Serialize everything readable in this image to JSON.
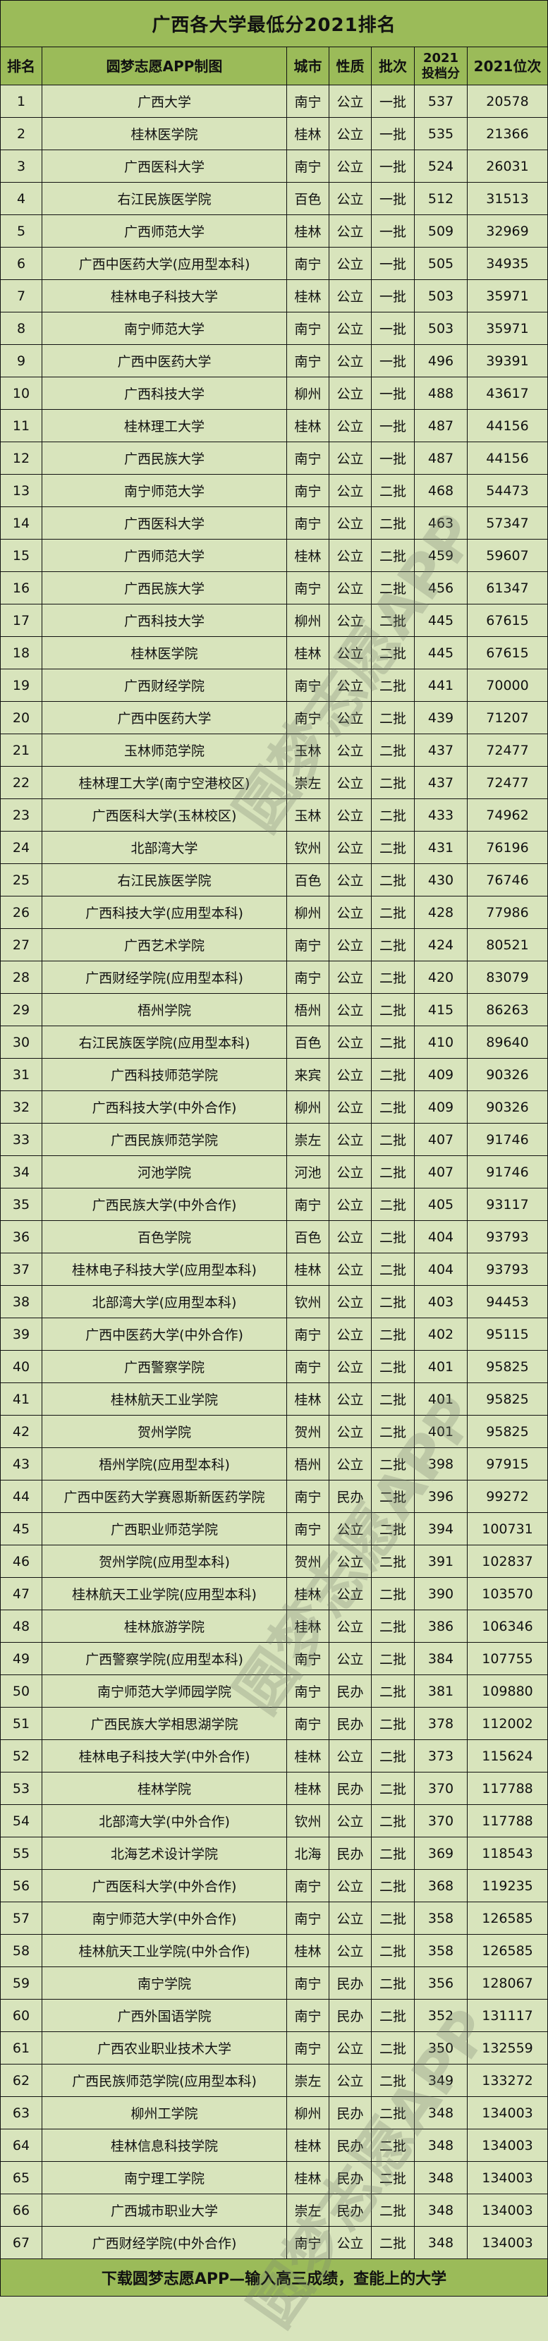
{
  "title": "广西各大学最低分2021排名",
  "headers": {
    "rank": "排名",
    "name": "圆梦志愿APP制图",
    "city": "城市",
    "nature": "性质",
    "batch": "批次",
    "score_line1": "2021",
    "score_line2": "投档分",
    "position": "2021位次"
  },
  "rows": [
    [
      "1",
      "广西大学",
      "南宁",
      "公立",
      "一批",
      "537",
      "20578"
    ],
    [
      "2",
      "桂林医学院",
      "桂林",
      "公立",
      "一批",
      "535",
      "21366"
    ],
    [
      "3",
      "广西医科大学",
      "南宁",
      "公立",
      "一批",
      "524",
      "26031"
    ],
    [
      "4",
      "右江民族医学院",
      "百色",
      "公立",
      "一批",
      "512",
      "31513"
    ],
    [
      "5",
      "广西师范大学",
      "桂林",
      "公立",
      "一批",
      "509",
      "32969"
    ],
    [
      "6",
      "广西中医药大学(应用型本科)",
      "南宁",
      "公立",
      "一批",
      "505",
      "34935"
    ],
    [
      "7",
      "桂林电子科技大学",
      "桂林",
      "公立",
      "一批",
      "503",
      "35971"
    ],
    [
      "8",
      "南宁师范大学",
      "南宁",
      "公立",
      "一批",
      "503",
      "35971"
    ],
    [
      "9",
      "广西中医药大学",
      "南宁",
      "公立",
      "一批",
      "496",
      "39391"
    ],
    [
      "10",
      "广西科技大学",
      "柳州",
      "公立",
      "一批",
      "488",
      "43617"
    ],
    [
      "11",
      "桂林理工大学",
      "桂林",
      "公立",
      "一批",
      "487",
      "44156"
    ],
    [
      "12",
      "广西民族大学",
      "南宁",
      "公立",
      "一批",
      "487",
      "44156"
    ],
    [
      "13",
      "南宁师范大学",
      "南宁",
      "公立",
      "二批",
      "468",
      "54473"
    ],
    [
      "14",
      "广西医科大学",
      "南宁",
      "公立",
      "二批",
      "463",
      "57347"
    ],
    [
      "15",
      "广西师范大学",
      "桂林",
      "公立",
      "二批",
      "459",
      "59607"
    ],
    [
      "16",
      "广西民族大学",
      "南宁",
      "公立",
      "二批",
      "456",
      "61347"
    ],
    [
      "17",
      "广西科技大学",
      "柳州",
      "公立",
      "二批",
      "445",
      "67615"
    ],
    [
      "18",
      "桂林医学院",
      "桂林",
      "公立",
      "二批",
      "445",
      "67615"
    ],
    [
      "19",
      "广西财经学院",
      "南宁",
      "公立",
      "二批",
      "441",
      "70000"
    ],
    [
      "20",
      "广西中医药大学",
      "南宁",
      "公立",
      "二批",
      "439",
      "71207"
    ],
    [
      "21",
      "玉林师范学院",
      "玉林",
      "公立",
      "二批",
      "437",
      "72477"
    ],
    [
      "22",
      "桂林理工大学(南宁空港校区)",
      "崇左",
      "公立",
      "二批",
      "437",
      "72477"
    ],
    [
      "23",
      "广西医科大学(玉林校区)",
      "玉林",
      "公立",
      "二批",
      "433",
      "74962"
    ],
    [
      "24",
      "北部湾大学",
      "钦州",
      "公立",
      "二批",
      "431",
      "76196"
    ],
    [
      "25",
      "右江民族医学院",
      "百色",
      "公立",
      "二批",
      "430",
      "76746"
    ],
    [
      "26",
      "广西科技大学(应用型本科)",
      "柳州",
      "公立",
      "二批",
      "428",
      "77986"
    ],
    [
      "27",
      "广西艺术学院",
      "南宁",
      "公立",
      "二批",
      "424",
      "80521"
    ],
    [
      "28",
      "广西财经学院(应用型本科)",
      "南宁",
      "公立",
      "二批",
      "420",
      "83079"
    ],
    [
      "29",
      "梧州学院",
      "梧州",
      "公立",
      "二批",
      "415",
      "86263"
    ],
    [
      "30",
      "右江民族医学院(应用型本科)",
      "百色",
      "公立",
      "二批",
      "410",
      "89640"
    ],
    [
      "31",
      "广西科技师范学院",
      "来宾",
      "公立",
      "二批",
      "409",
      "90326"
    ],
    [
      "32",
      "广西科技大学(中外合作)",
      "柳州",
      "公立",
      "二批",
      "409",
      "90326"
    ],
    [
      "33",
      "广西民族师范学院",
      "崇左",
      "公立",
      "二批",
      "407",
      "91746"
    ],
    [
      "34",
      "河池学院",
      "河池",
      "公立",
      "二批",
      "407",
      "91746"
    ],
    [
      "35",
      "广西民族大学(中外合作)",
      "南宁",
      "公立",
      "二批",
      "405",
      "93117"
    ],
    [
      "36",
      "百色学院",
      "百色",
      "公立",
      "二批",
      "404",
      "93793"
    ],
    [
      "37",
      "桂林电子科技大学(应用型本科)",
      "桂林",
      "公立",
      "二批",
      "404",
      "93793"
    ],
    [
      "38",
      "北部湾大学(应用型本科)",
      "钦州",
      "公立",
      "二批",
      "403",
      "94453"
    ],
    [
      "39",
      "广西中医药大学(中外合作)",
      "南宁",
      "公立",
      "二批",
      "402",
      "95115"
    ],
    [
      "40",
      "广西警察学院",
      "南宁",
      "公立",
      "二批",
      "401",
      "95825"
    ],
    [
      "41",
      "桂林航天工业学院",
      "桂林",
      "公立",
      "二批",
      "401",
      "95825"
    ],
    [
      "42",
      "贺州学院",
      "贺州",
      "公立",
      "二批",
      "401",
      "95825"
    ],
    [
      "43",
      "梧州学院(应用型本科)",
      "梧州",
      "公立",
      "二批",
      "398",
      "97915"
    ],
    [
      "44",
      "广西中医药大学赛恩斯新医药学院",
      "南宁",
      "民办",
      "二批",
      "396",
      "99272"
    ],
    [
      "45",
      "广西职业师范学院",
      "南宁",
      "公立",
      "二批",
      "394",
      "100731"
    ],
    [
      "46",
      "贺州学院(应用型本科)",
      "贺州",
      "公立",
      "二批",
      "391",
      "102837"
    ],
    [
      "47",
      "桂林航天工业学院(应用型本科)",
      "桂林",
      "公立",
      "二批",
      "390",
      "103570"
    ],
    [
      "48",
      "桂林旅游学院",
      "桂林",
      "公立",
      "二批",
      "386",
      "106346"
    ],
    [
      "49",
      "广西警察学院(应用型本科)",
      "南宁",
      "公立",
      "二批",
      "384",
      "107755"
    ],
    [
      "50",
      "南宁师范大学师园学院",
      "南宁",
      "民办",
      "二批",
      "381",
      "109880"
    ],
    [
      "51",
      "广西民族大学相思湖学院",
      "南宁",
      "民办",
      "二批",
      "378",
      "112002"
    ],
    [
      "52",
      "桂林电子科技大学(中外合作)",
      "桂林",
      "公立",
      "二批",
      "373",
      "115624"
    ],
    [
      "53",
      "桂林学院",
      "桂林",
      "民办",
      "二批",
      "370",
      "117788"
    ],
    [
      "54",
      "北部湾大学(中外合作)",
      "钦州",
      "公立",
      "二批",
      "370",
      "117788"
    ],
    [
      "55",
      "北海艺术设计学院",
      "北海",
      "民办",
      "二批",
      "369",
      "118543"
    ],
    [
      "56",
      "广西医科大学(中外合作)",
      "南宁",
      "公立",
      "二批",
      "368",
      "119235"
    ],
    [
      "57",
      "南宁师范大学(中外合作)",
      "南宁",
      "公立",
      "二批",
      "358",
      "126585"
    ],
    [
      "58",
      "桂林航天工业学院(中外合作)",
      "桂林",
      "公立",
      "二批",
      "358",
      "126585"
    ],
    [
      "59",
      "南宁学院",
      "南宁",
      "民办",
      "二批",
      "356",
      "128067"
    ],
    [
      "60",
      "广西外国语学院",
      "南宁",
      "民办",
      "二批",
      "352",
      "131117"
    ],
    [
      "61",
      "广西农业职业技术大学",
      "南宁",
      "公立",
      "二批",
      "350",
      "132559"
    ],
    [
      "62",
      "广西民族师范学院(应用型本科)",
      "崇左",
      "公立",
      "二批",
      "349",
      "133272"
    ],
    [
      "63",
      "柳州工学院",
      "柳州",
      "民办",
      "二批",
      "348",
      "134003"
    ],
    [
      "64",
      "桂林信息科技学院",
      "桂林",
      "民办",
      "二批",
      "348",
      "134003"
    ],
    [
      "65",
      "南宁理工学院",
      "桂林",
      "民办",
      "二批",
      "348",
      "134003"
    ],
    [
      "66",
      "广西城市职业大学",
      "崇左",
      "民办",
      "二批",
      "348",
      "134003"
    ],
    [
      "67",
      "广西财经学院(中外合作)",
      "南宁",
      "公立",
      "二批",
      "348",
      "134003"
    ]
  ],
  "footer": "下载圆梦志愿APP—输入高三成绩，查能上的大学",
  "watermark": "圆梦志愿APP",
  "colors": {
    "header_bg": "#9bbb59",
    "row_bg": "#d8e4bc",
    "border": "#111111"
  }
}
